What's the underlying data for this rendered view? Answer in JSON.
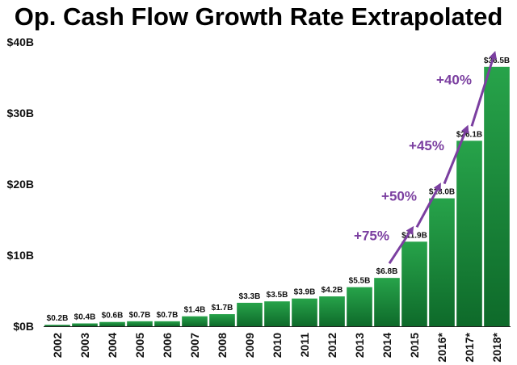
{
  "chart_data": {
    "type": "bar",
    "title": "Op. Cash Flow Growth Rate Extrapolated",
    "categories": [
      "2002",
      "2003",
      "2004",
      "2005",
      "2006",
      "2007",
      "2008",
      "2009",
      "2010",
      "2011",
      "2012",
      "2013",
      "2014",
      "2015",
      "2016*",
      "2017*",
      "2018*"
    ],
    "values": [
      0.2,
      0.4,
      0.6,
      0.7,
      0.7,
      1.4,
      1.7,
      3.3,
      3.5,
      3.9,
      4.2,
      5.5,
      6.8,
      11.9,
      18.0,
      26.1,
      36.5
    ],
    "data_labels": [
      "$0.2B",
      "$0.4B",
      "$0.6B",
      "$0.7B",
      "$0.7B",
      "$1.4B",
      "$1.7B",
      "$3.3B",
      "$3.5B",
      "$3.9B",
      "$4.2B",
      "$5.5B",
      "$6.8B",
      "$11.9B",
      "$18.0B",
      "$26.1B",
      "$36.5B"
    ],
    "ylim": [
      0,
      40
    ],
    "yticks": [
      0,
      10,
      20,
      30,
      40
    ],
    "ytick_labels": [
      "$0B",
      "$10B",
      "$20B",
      "$30B",
      "$40B"
    ],
    "xlabel": "",
    "ylabel": "",
    "grid": false,
    "colors": {
      "bar_top": "#27a34a",
      "bar_bottom": "#0e6a2a",
      "annotation": "#7b3fa0",
      "text": "#111111"
    },
    "annotations": [
      {
        "text": "+75%",
        "from": "2014",
        "to": "2015"
      },
      {
        "text": "+50%",
        "from": "2015",
        "to": "2016*"
      },
      {
        "text": "+45%",
        "from": "2016*",
        "to": "2017*"
      },
      {
        "text": "+40%",
        "from": "2017*",
        "to": "2018*"
      }
    ]
  }
}
